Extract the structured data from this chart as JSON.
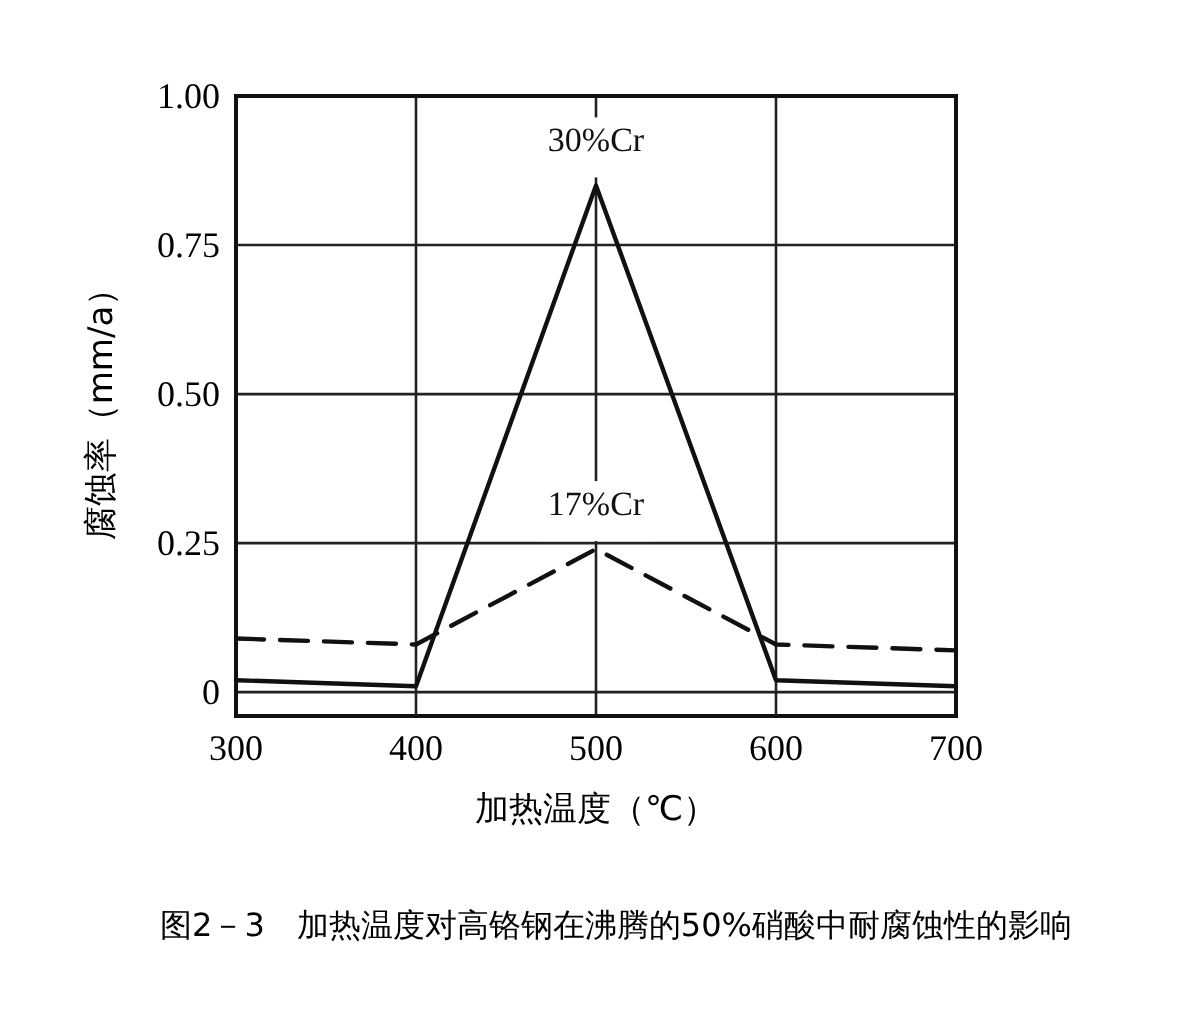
{
  "chart_data": {
    "type": "line",
    "title": "图2－3　加热温度对高铬钢在沸腾的50%硝酸中耐腐蚀性的影响",
    "xlabel": "加热温度（℃）",
    "ylabel": "腐蚀率（mm/a）",
    "x": [
      300,
      400,
      500,
      600,
      700
    ],
    "series": [
      {
        "name": "30%Cr",
        "color": "#111111",
        "line_style": "solid",
        "values": [
          0.02,
          0.01,
          0.85,
          0.02,
          0.01
        ]
      },
      {
        "name": "17%Cr",
        "color": "#111111",
        "line_style": "dashed",
        "values": [
          0.09,
          0.08,
          0.24,
          0.08,
          0.07
        ]
      }
    ],
    "xlim": [
      300,
      700
    ],
    "xticks": [
      300,
      400,
      500,
      600,
      700
    ],
    "ylim": [
      -0.04,
      1.0
    ],
    "yticks": [
      {
        "value": 0,
        "label": "0"
      },
      {
        "value": 0.25,
        "label": "0.25"
      },
      {
        "value": 0.5,
        "label": "0.50"
      },
      {
        "value": 0.75,
        "label": "0.75"
      },
      {
        "value": 1,
        "label": "1.00"
      }
    ],
    "grid": true,
    "marker": "none"
  }
}
